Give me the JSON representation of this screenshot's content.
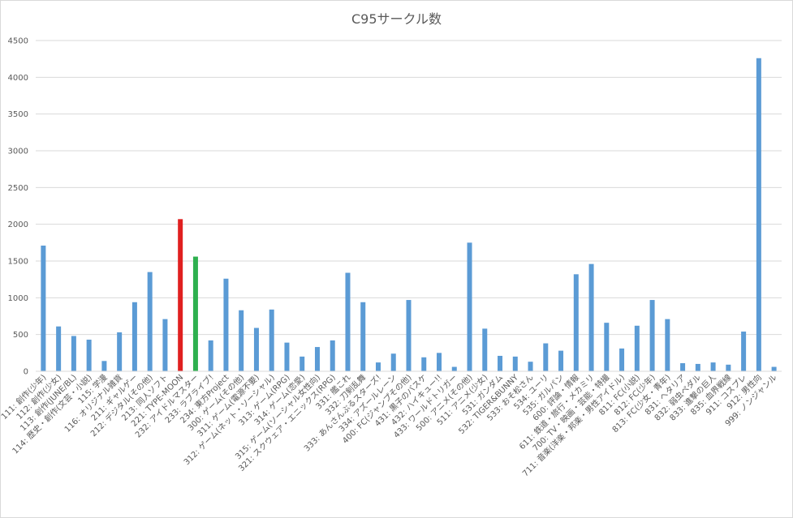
{
  "chart_data": {
    "type": "bar",
    "title": "C95サークル数",
    "xlabel": "",
    "ylabel": "",
    "ylim": [
      0,
      4500
    ],
    "yticks": [
      0,
      500,
      1000,
      1500,
      2000,
      2500,
      3000,
      3500,
      4000,
      4500
    ],
    "grid": true,
    "legend": "none",
    "colors": {
      "default": "#5b9bd5",
      "highlight_red": "#e02020",
      "highlight_green": "#2eb04f",
      "grid": "#d9d9d9",
      "text": "#595959"
    },
    "categories": [
      "111: 創作(少年)",
      "112: 創作(少女)",
      "113: 創作(JUNE/BL)",
      "114: 歴史・創作(文芸・小説)",
      "115: 学漫",
      "116: オリジナル雑貨",
      "211: ギャルゲー",
      "212: デジタル(その他)",
      "213: 同人ソフト",
      "221: TYPE-MOON",
      "232: アイドルマスター",
      "233: ラブライブ!",
      "234: 東方Project",
      "300: ゲーム(その他)",
      "311: ゲーム(電源不要)",
      "312: ゲーム(ネット・ソーシャル)",
      "313: ゲーム(RPG)",
      "314: ゲーム(恋愛)",
      "315: ゲーム(ソーシャル女性向)",
      "321: スクウェア・エニックス(RPG)",
      "331: 艦これ",
      "332: 刀剣乱舞",
      "333: あんさんぶるスターズ!",
      "334: アズールレーン",
      "400: FC(ジャンプその他)",
      "431: 黒子のバスケ",
      "432: ハイキュー!!",
      "433: ワールドトリガー",
      "500: アニメ(その他)",
      "511: アニメ(少女)",
      "531: ガンダム",
      "532: TIGER&BUNNY",
      "533: おそ松さん",
      "534: ユーリ",
      "535: ガルパン",
      "600: 評論・情報",
      "611: 鉄道・旅行・メカミリ",
      "700: TV・映画・芸能・特撮",
      "711: 音楽(洋楽・邦楽・男性アイドル)",
      "811: FC(小説)",
      "812: FC(少年)",
      "813: FC(少女・青年)",
      "831: ヘタリア",
      "832: 弱虫ペダル",
      "833: 進撃の巨人",
      "835: 血界戦線",
      "911: コスプレ",
      "912: 男性向",
      "999: ノンジャンル"
    ],
    "values": [
      1710,
      610,
      480,
      430,
      140,
      530,
      940,
      1350,
      710,
      2070,
      1560,
      420,
      1260,
      830,
      590,
      840,
      390,
      200,
      330,
      420,
      1340,
      940,
      120,
      240,
      970,
      190,
      250,
      60,
      1750,
      580,
      210,
      200,
      130,
      380,
      280,
      1320,
      1460,
      660,
      310,
      620,
      970,
      710,
      110,
      100,
      120,
      90,
      540,
      4260,
      60
    ],
    "highlights": {
      "9": "highlight_red",
      "10": "highlight_green"
    }
  }
}
